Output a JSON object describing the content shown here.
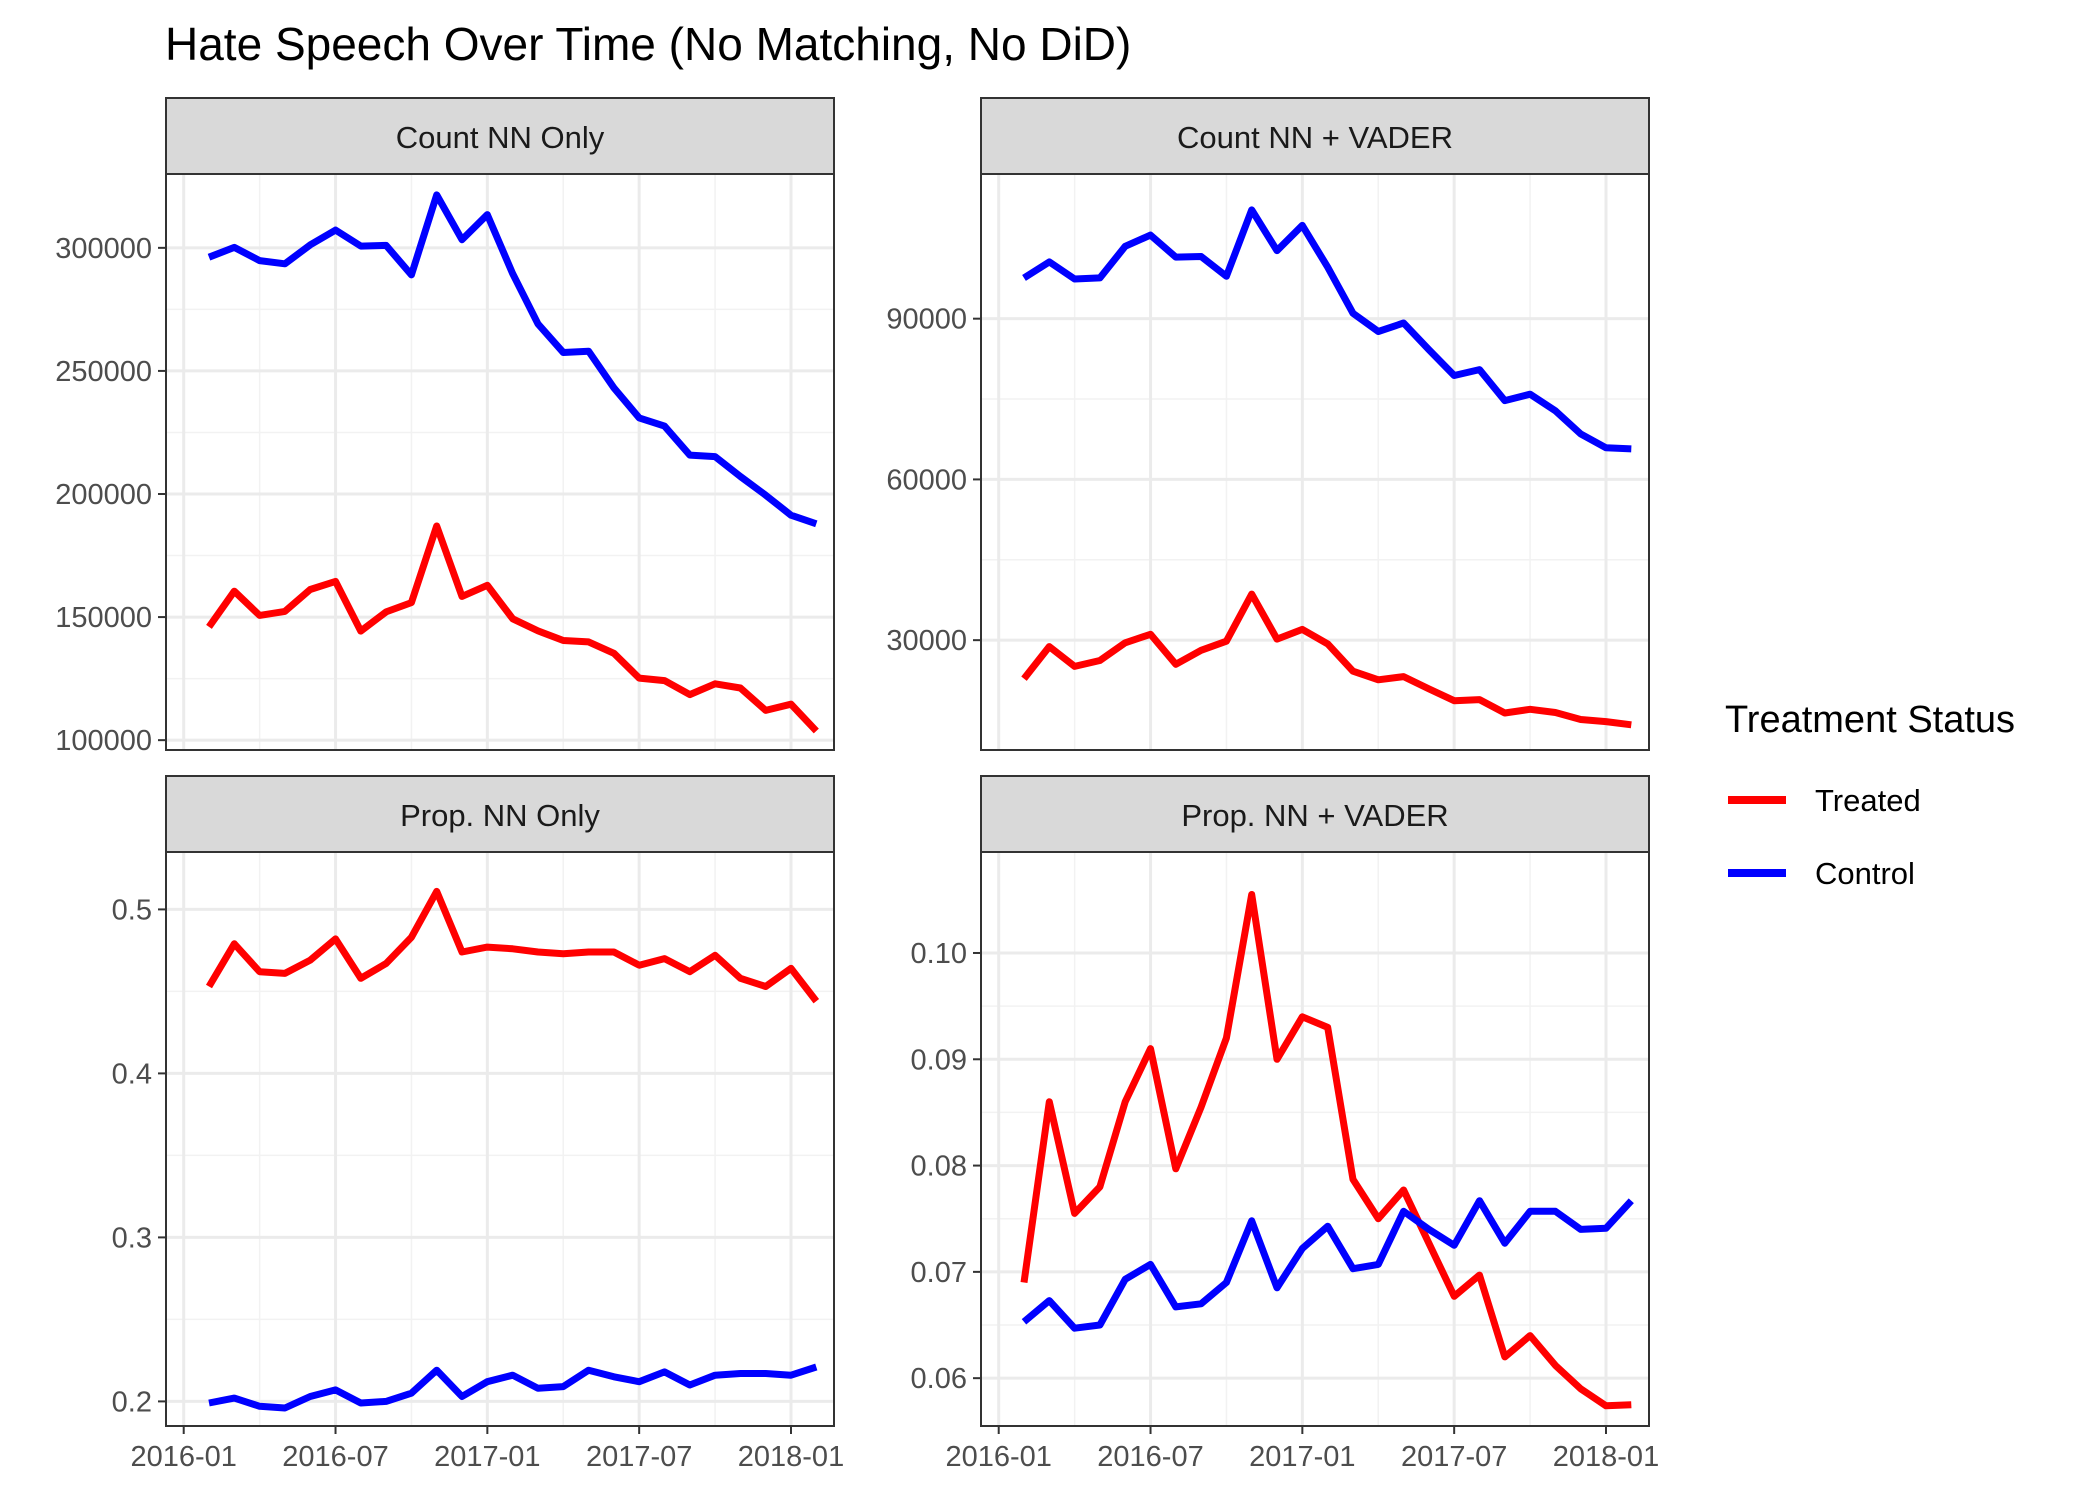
{
  "title": "Hate Speech Over Time (No Matching, No DiD)",
  "legend": {
    "title": "Treatment Status",
    "position": "right",
    "items": [
      {
        "label": "Treated",
        "color": "#ff0000"
      },
      {
        "label": "Control",
        "color": "#0000ff"
      }
    ]
  },
  "x_ticks": [
    "2016-01",
    "2016-07",
    "2017-01",
    "2017-07",
    "2018-01"
  ],
  "chart_data": [
    {
      "type": "line",
      "facet_label": "Count NN Only",
      "grid": true,
      "x": [
        "2016-02",
        "2016-03",
        "2016-04",
        "2016-05",
        "2016-06",
        "2016-07",
        "2016-08",
        "2016-09",
        "2016-10",
        "2016-11",
        "2016-12",
        "2017-01",
        "2017-02",
        "2017-03",
        "2017-04",
        "2017-05",
        "2017-06",
        "2017-07",
        "2017-08",
        "2017-09",
        "2017-10",
        "2017-11",
        "2017-12",
        "2018-01",
        "2018-02"
      ],
      "ylim": [
        96000,
        330000
      ],
      "y_ticks": [
        100000,
        150000,
        200000,
        250000,
        300000
      ],
      "series": [
        {
          "name": "Treated",
          "values": [
            146000,
            160500,
            150700,
            152300,
            161200,
            164500,
            144300,
            152100,
            155900,
            187000,
            158400,
            162900,
            149300,
            144400,
            140500,
            139900,
            135300,
            125200,
            124200,
            118500,
            122900,
            121200,
            112100,
            114600,
            103700
          ]
        },
        {
          "name": "Control",
          "values": [
            296200,
            300200,
            294800,
            293500,
            301200,
            307200,
            300700,
            301000,
            289000,
            321500,
            303300,
            313500,
            289500,
            269100,
            257500,
            258000,
            243100,
            230900,
            227600,
            215800,
            215200,
            207100,
            199500,
            191400,
            187900
          ]
        }
      ]
    },
    {
      "type": "line",
      "facet_label": "Count NN + VADER",
      "grid": true,
      "x": [
        "2016-02",
        "2016-03",
        "2016-04",
        "2016-05",
        "2016-06",
        "2016-07",
        "2016-08",
        "2016-09",
        "2016-10",
        "2016-11",
        "2016-12",
        "2017-01",
        "2017-02",
        "2017-03",
        "2017-04",
        "2017-05",
        "2017-06",
        "2017-07",
        "2017-08",
        "2017-09",
        "2017-10",
        "2017-11",
        "2017-12",
        "2018-01",
        "2018-02"
      ],
      "ylim": [
        9500,
        117000
      ],
      "y_ticks": [
        30000,
        60000,
        90000
      ],
      "series": [
        {
          "name": "Treated",
          "values": [
            22800,
            28800,
            25100,
            26200,
            29500,
            31100,
            25500,
            28100,
            29800,
            38600,
            30200,
            32000,
            29300,
            24200,
            22600,
            23200,
            20900,
            18700,
            18900,
            16400,
            17100,
            16500,
            15200,
            14800,
            14200
          ]
        },
        {
          "name": "Control",
          "values": [
            97600,
            100600,
            97400,
            97600,
            103500,
            105600,
            101500,
            101600,
            97900,
            110300,
            102700,
            107400,
            99600,
            91000,
            87600,
            89200,
            84200,
            79400,
            80500,
            74700,
            75900,
            72800,
            68500,
            65900,
            65700
          ]
        }
      ]
    },
    {
      "type": "line",
      "facet_label": "Prop. NN Only",
      "grid": true,
      "x": [
        "2016-02",
        "2016-03",
        "2016-04",
        "2016-05",
        "2016-06",
        "2016-07",
        "2016-08",
        "2016-09",
        "2016-10",
        "2016-11",
        "2016-12",
        "2017-01",
        "2017-02",
        "2017-03",
        "2017-04",
        "2017-05",
        "2017-06",
        "2017-07",
        "2017-08",
        "2017-09",
        "2017-10",
        "2017-11",
        "2017-12",
        "2018-01",
        "2018-02"
      ],
      "ylim": [
        0.185,
        0.535
      ],
      "y_ticks": [
        0.2,
        0.3,
        0.4,
        0.5
      ],
      "series": [
        {
          "name": "Treated",
          "values": [
            0.453,
            0.479,
            0.462,
            0.461,
            0.469,
            0.482,
            0.458,
            0.467,
            0.483,
            0.511,
            0.474,
            0.477,
            0.476,
            0.474,
            0.473,
            0.474,
            0.474,
            0.466,
            0.47,
            0.462,
            0.472,
            0.458,
            0.453,
            0.464,
            0.444
          ]
        },
        {
          "name": "Control",
          "values": [
            0.199,
            0.202,
            0.197,
            0.196,
            0.203,
            0.207,
            0.199,
            0.2,
            0.205,
            0.219,
            0.203,
            0.212,
            0.216,
            0.208,
            0.209,
            0.219,
            0.215,
            0.212,
            0.218,
            0.21,
            0.216,
            0.217,
            0.217,
            0.216,
            0.221
          ]
        }
      ]
    },
    {
      "type": "line",
      "facet_label": "Prop. NN + VADER",
      "grid": true,
      "x": [
        "2016-02",
        "2016-03",
        "2016-04",
        "2016-05",
        "2016-06",
        "2016-07",
        "2016-08",
        "2016-09",
        "2016-10",
        "2016-11",
        "2016-12",
        "2017-01",
        "2017-02",
        "2017-03",
        "2017-04",
        "2017-05",
        "2017-06",
        "2017-07",
        "2017-08",
        "2017-09",
        "2017-10",
        "2017-11",
        "2017-12",
        "2018-01",
        "2018-02"
      ],
      "ylim": [
        0.0555,
        0.1095
      ],
      "y_ticks": [
        0.06,
        0.07,
        0.08,
        0.09,
        0.1
      ],
      "series": [
        {
          "name": "Treated",
          "values": [
            0.069,
            0.086,
            0.0755,
            0.078,
            0.086,
            0.091,
            0.0797,
            0.0855,
            0.092,
            0.1055,
            0.09,
            0.094,
            0.093,
            0.0787,
            0.075,
            0.0777,
            0.0727,
            0.0677,
            0.0697,
            0.062,
            0.064,
            0.0612,
            0.059,
            0.0574,
            0.0575
          ]
        },
        {
          "name": "Control",
          "values": [
            0.0653,
            0.0673,
            0.0647,
            0.065,
            0.0693,
            0.0707,
            0.0667,
            0.067,
            0.069,
            0.0748,
            0.0685,
            0.0722,
            0.0743,
            0.0703,
            0.0707,
            0.0757,
            0.074,
            0.0725,
            0.0767,
            0.0727,
            0.0757,
            0.0757,
            0.074,
            0.0741,
            0.0767
          ]
        }
      ]
    }
  ]
}
